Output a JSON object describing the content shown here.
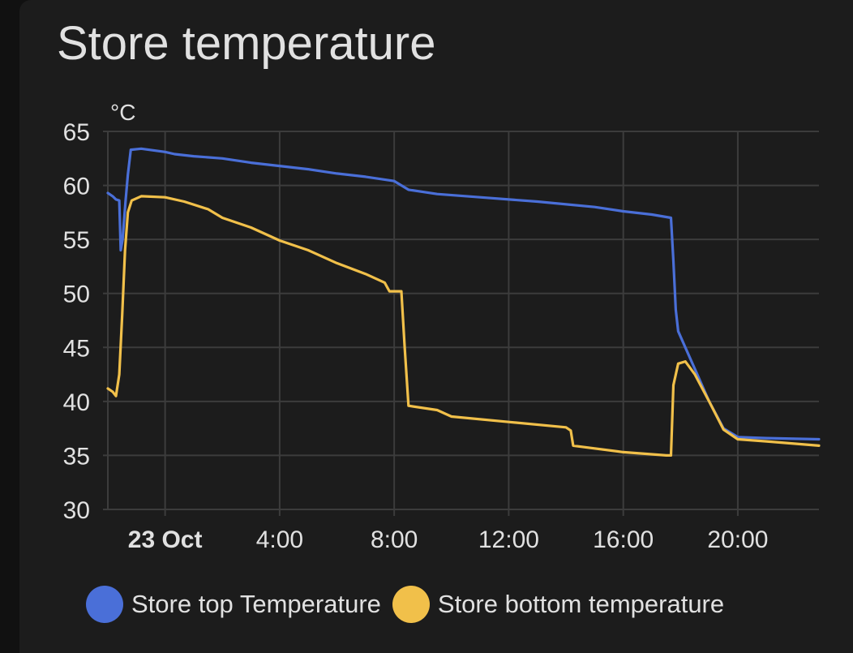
{
  "card": {
    "title": "Store temperature"
  },
  "colors": {
    "background": "#1c1c1c",
    "grid": "#3c3c3c",
    "text": "#e1e1e1"
  },
  "chart_data": {
    "type": "line",
    "title": "Store temperature",
    "ylabel": "°C",
    "xlabel": "",
    "ylim": [
      30,
      65
    ],
    "yticks": [
      30,
      35,
      40,
      45,
      50,
      55,
      60,
      65
    ],
    "xlim": [
      "2023-10-22T22:00",
      "2023-10-23T22:50"
    ],
    "xticks": [
      {
        "t": "2023-10-23T00:00",
        "label": "23 Oct",
        "bold": true
      },
      {
        "t": "2023-10-23T04:00",
        "label": "4:00",
        "bold": false
      },
      {
        "t": "2023-10-23T08:00",
        "label": "8:00",
        "bold": false
      },
      {
        "t": "2023-10-23T12:00",
        "label": "12:00",
        "bold": false
      },
      {
        "t": "2023-10-23T16:00",
        "label": "16:00",
        "bold": false
      },
      {
        "t": "2023-10-23T20:00",
        "label": "20:00",
        "bold": false
      }
    ],
    "grid": true,
    "legend_position": "bottom",
    "series": [
      {
        "name": "Store top Temperature",
        "color": "#4a6fd8",
        "points": [
          [
            "2023-10-22T22:00",
            59.3
          ],
          [
            "2023-10-22T22:10",
            59.0
          ],
          [
            "2023-10-22T22:17",
            58.7
          ],
          [
            "2023-10-22T22:24",
            58.6
          ],
          [
            "2023-10-22T22:27",
            54.0
          ],
          [
            "2023-10-22T22:31",
            55.0
          ],
          [
            "2023-10-22T22:37",
            58.5
          ],
          [
            "2023-10-22T22:42",
            61.0
          ],
          [
            "2023-10-22T22:48",
            63.3
          ],
          [
            "2023-10-22T23:10",
            63.4
          ],
          [
            "2023-10-23T00:00",
            63.1
          ],
          [
            "2023-10-23T00:20",
            62.9
          ],
          [
            "2023-10-23T01:00",
            62.7
          ],
          [
            "2023-10-23T02:00",
            62.5
          ],
          [
            "2023-10-23T03:00",
            62.1
          ],
          [
            "2023-10-23T04:00",
            61.8
          ],
          [
            "2023-10-23T05:00",
            61.5
          ],
          [
            "2023-10-23T06:00",
            61.1
          ],
          [
            "2023-10-23T07:00",
            60.8
          ],
          [
            "2023-10-23T08:00",
            60.4
          ],
          [
            "2023-10-23T08:30",
            59.6
          ],
          [
            "2023-10-23T09:30",
            59.2
          ],
          [
            "2023-10-23T11:00",
            58.9
          ],
          [
            "2023-10-23T13:00",
            58.5
          ],
          [
            "2023-10-23T15:00",
            58.0
          ],
          [
            "2023-10-23T16:00",
            57.6
          ],
          [
            "2023-10-23T17:00",
            57.3
          ],
          [
            "2023-10-23T17:40",
            57.0
          ],
          [
            "2023-10-23T17:45",
            53.0
          ],
          [
            "2023-10-23T17:50",
            48.5
          ],
          [
            "2023-10-23T17:55",
            46.5
          ],
          [
            "2023-10-23T18:10",
            45.0
          ],
          [
            "2023-10-23T18:30",
            43.0
          ],
          [
            "2023-10-23T19:00",
            40.0
          ],
          [
            "2023-10-23T19:30",
            37.5
          ],
          [
            "2023-10-23T20:00",
            36.7
          ],
          [
            "2023-10-23T21:00",
            36.6
          ],
          [
            "2023-10-23T22:50",
            36.5
          ]
        ]
      },
      {
        "name": "Store bottom temperature",
        "color": "#f1c04a",
        "points": [
          [
            "2023-10-22T22:00",
            41.2
          ],
          [
            "2023-10-22T22:10",
            40.9
          ],
          [
            "2023-10-22T22:17",
            40.5
          ],
          [
            "2023-10-22T22:24",
            42.5
          ],
          [
            "2023-10-22T22:30",
            48.0
          ],
          [
            "2023-10-22T22:36",
            54.0
          ],
          [
            "2023-10-22T22:42",
            57.5
          ],
          [
            "2023-10-22T22:50",
            58.6
          ],
          [
            "2023-10-22T23:10",
            59.0
          ],
          [
            "2023-10-23T00:00",
            58.9
          ],
          [
            "2023-10-23T00:40",
            58.5
          ],
          [
            "2023-10-23T01:30",
            57.8
          ],
          [
            "2023-10-23T02:00",
            57.0
          ],
          [
            "2023-10-23T03:00",
            56.1
          ],
          [
            "2023-10-23T04:00",
            54.9
          ],
          [
            "2023-10-23T05:00",
            54.0
          ],
          [
            "2023-10-23T06:00",
            52.8
          ],
          [
            "2023-10-23T07:00",
            51.8
          ],
          [
            "2023-10-23T07:40",
            51.0
          ],
          [
            "2023-10-23T07:50",
            50.2
          ],
          [
            "2023-10-23T08:15",
            50.2
          ],
          [
            "2023-10-23T08:22",
            45.0
          ],
          [
            "2023-10-23T08:30",
            39.6
          ],
          [
            "2023-10-23T09:30",
            39.2
          ],
          [
            "2023-10-23T10:00",
            38.6
          ],
          [
            "2023-10-23T12:00",
            38.1
          ],
          [
            "2023-10-23T14:00",
            37.6
          ],
          [
            "2023-10-23T14:10",
            37.3
          ],
          [
            "2023-10-23T14:15",
            35.9
          ],
          [
            "2023-10-23T16:00",
            35.3
          ],
          [
            "2023-10-23T17:30",
            35.0
          ],
          [
            "2023-10-23T17:40",
            35.0
          ],
          [
            "2023-10-23T17:45",
            41.5
          ],
          [
            "2023-10-23T17:55",
            43.5
          ],
          [
            "2023-10-23T18:10",
            43.7
          ],
          [
            "2023-10-23T18:30",
            42.5
          ],
          [
            "2023-10-23T19:00",
            40.0
          ],
          [
            "2023-10-23T19:30",
            37.4
          ],
          [
            "2023-10-23T20:00",
            36.5
          ],
          [
            "2023-10-23T21:00",
            36.3
          ],
          [
            "2023-10-23T22:50",
            35.9
          ]
        ]
      }
    ]
  }
}
